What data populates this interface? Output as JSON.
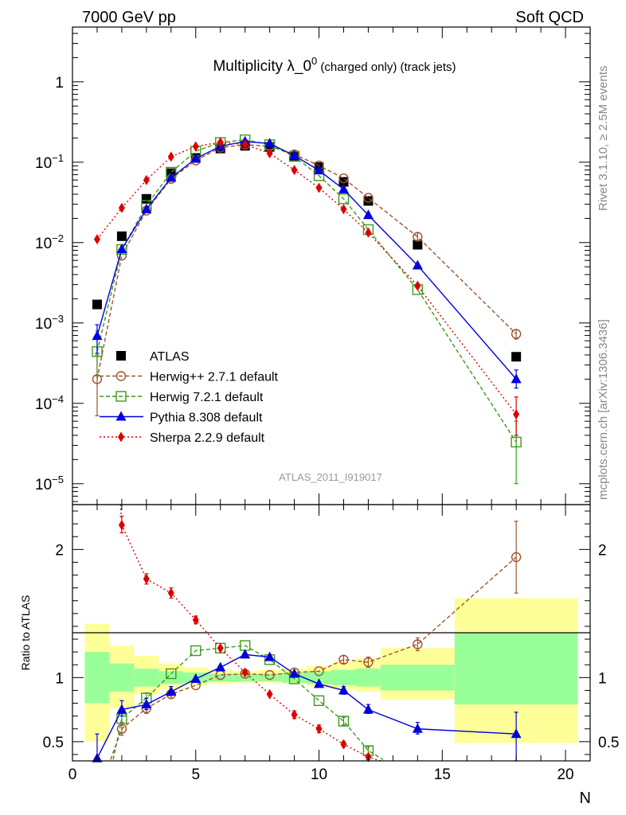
{
  "header": {
    "left": "7000 GeV pp",
    "right": "Soft QCD",
    "side_top": "Rivet 3.1.10, ≥ 2.5M events",
    "side_bottom": "mcplots.cern.ch [arXiv:1306.3436]",
    "watermark": "ATLAS_2011_I919017"
  },
  "colors": {
    "atlas": "#000000",
    "herwig_pp": "#a0522d",
    "herwig7": "#3a9a1a",
    "pythia": "#0000dd",
    "sherpa": "#dd0000",
    "band_green": "#99ff99",
    "band_yellow": "#ffff99"
  },
  "chart_data": [
    {
      "type": "scatter",
      "panel": "main",
      "title": "Multiplicity λ_0⁰ (charged only) (track jets)",
      "title_parts": {
        "main": "Multiplicity λ_0",
        "sup": "0",
        "rest": " (charged only) (track jets)"
      },
      "xlabel": "N",
      "ylabel": "",
      "xlim": [
        0,
        21
      ],
      "ylim": [
        5.5e-06,
        4.8
      ],
      "yscale": "log",
      "yticks": [
        {
          "v": 1e-05,
          "b": "10",
          "e": "−5"
        },
        {
          "v": 0.0001,
          "b": "10",
          "e": "−4"
        },
        {
          "v": 0.001,
          "b": "10",
          "e": "−3"
        },
        {
          "v": 0.01,
          "b": "10",
          "e": "−2"
        },
        {
          "v": 0.1,
          "b": "10",
          "e": "−1"
        },
        {
          "v": 1,
          "b": "1",
          "e": ""
        }
      ],
      "legend_position": "bottom-left",
      "series": [
        {
          "name": "ATLAS",
          "style": "data",
          "marker": "square",
          "x": [
            1,
            2,
            3,
            4,
            5,
            6,
            7,
            8,
            9,
            10,
            11,
            12,
            14,
            18
          ],
          "y": [
            0.0017,
            0.012,
            0.035,
            0.073,
            0.113,
            0.148,
            0.16,
            0.155,
            0.12,
            0.087,
            0.057,
            0.033,
            0.0094,
            0.00038
          ]
        },
        {
          "name": "Herwig++ 2.7.1 default",
          "style": "dashed",
          "marker": "circle-open",
          "x": [
            1,
            2,
            3,
            4,
            5,
            6,
            7,
            8,
            9,
            10,
            11,
            12,
            14,
            18
          ],
          "y": [
            0.0002,
            0.0069,
            0.025,
            0.062,
            0.105,
            0.152,
            0.165,
            0.158,
            0.125,
            0.091,
            0.063,
            0.036,
            0.0118,
            0.00073
          ],
          "err": [
            [
              7e-05,
              0.0004
            ],
            null,
            null,
            null,
            null,
            null,
            null,
            null,
            null,
            null,
            null,
            null,
            [
              0.0105,
              0.0132
            ],
            [
              0.00063,
              0.00083
            ]
          ]
        },
        {
          "name": "Herwig 7.2.1 default",
          "style": "dashed",
          "marker": "square-open",
          "x": [
            1,
            2,
            3,
            4,
            5,
            6,
            7,
            8,
            9,
            10,
            11,
            12,
            14,
            18
          ],
          "y": [
            0.00044,
            0.0082,
            0.029,
            0.075,
            0.137,
            0.176,
            0.19,
            0.165,
            0.118,
            0.068,
            0.035,
            0.0145,
            0.0026,
            3.3e-05
          ],
          "err": [
            [
              0.00022,
              0.0008
            ],
            null,
            null,
            null,
            null,
            null,
            null,
            null,
            null,
            null,
            null,
            null,
            null,
            [
              1e-05,
              6e-05
            ]
          ]
        },
        {
          "name": "Pythia 8.308 default",
          "style": "solid",
          "marker": "triangle",
          "x": [
            1,
            2,
            3,
            4,
            5,
            6,
            7,
            8,
            9,
            10,
            11,
            12,
            14,
            18
          ],
          "y": [
            0.00069,
            0.0083,
            0.026,
            0.064,
            0.111,
            0.158,
            0.181,
            0.171,
            0.121,
            0.079,
            0.046,
            0.022,
            0.0052,
            0.0002
          ],
          "err": [
            [
              0.00042,
              0.00095
            ],
            null,
            null,
            null,
            null,
            null,
            null,
            null,
            null,
            null,
            null,
            null,
            null,
            [
              0.000155,
              0.00026
            ]
          ]
        },
        {
          "name": "Sherpa 2.2.9 default",
          "style": "dotted",
          "marker": "diamond",
          "x": [
            1,
            2,
            3,
            4,
            5,
            6,
            7,
            8,
            9,
            10,
            11,
            12,
            14,
            18
          ],
          "y": [
            0.011,
            0.027,
            0.06,
            0.117,
            0.157,
            0.177,
            0.166,
            0.129,
            0.08,
            0.048,
            0.026,
            0.0133,
            0.0029,
            7.3e-05
          ],
          "err": [
            null,
            null,
            null,
            null,
            null,
            null,
            null,
            null,
            null,
            null,
            null,
            null,
            null,
            [
              4e-05,
              0.00012
            ]
          ]
        }
      ]
    },
    {
      "type": "scatter",
      "panel": "ratio",
      "title": "",
      "xlabel": "N",
      "ylabel": "Ratio to ATLAS",
      "xlim": [
        0,
        21
      ],
      "ylim": [
        0.35,
        2.35
      ],
      "yticks": [
        0.5,
        1,
        2
      ],
      "xticks": [
        0,
        5,
        10,
        15,
        20
      ],
      "bands": [
        {
          "x0": 0.5,
          "x1": 1.5,
          "inner": [
            0.8,
            1.2
          ],
          "outer": [
            0.5,
            1.42
          ]
        },
        {
          "x0": 1.5,
          "x1": 2.5,
          "inner": [
            0.89,
            1.11
          ],
          "outer": [
            0.76,
            1.25
          ]
        },
        {
          "x0": 2.5,
          "x1": 3.5,
          "inner": [
            0.93,
            1.07
          ],
          "outer": [
            0.87,
            1.17
          ]
        },
        {
          "x0": 3.5,
          "x1": 4.5,
          "inner": [
            0.95,
            1.05
          ],
          "outer": [
            0.91,
            1.11
          ]
        },
        {
          "x0": 4.5,
          "x1": 5.5,
          "inner": [
            0.96,
            1.04
          ],
          "outer": [
            0.94,
            1.08
          ]
        },
        {
          "x0": 5.5,
          "x1": 6.5,
          "inner": [
            0.97,
            1.03
          ],
          "outer": [
            0.95,
            1.06
          ]
        },
        {
          "x0": 6.5,
          "x1": 7.5,
          "inner": [
            0.97,
            1.03
          ],
          "outer": [
            0.96,
            1.05
          ]
        },
        {
          "x0": 7.5,
          "x1": 8.5,
          "inner": [
            0.97,
            1.03
          ],
          "outer": [
            0.96,
            1.06
          ]
        },
        {
          "x0": 8.5,
          "x1": 9.5,
          "inner": [
            0.96,
            1.04
          ],
          "outer": [
            0.95,
            1.07
          ]
        },
        {
          "x0": 9.5,
          "x1": 10.5,
          "inner": [
            0.95,
            1.05
          ],
          "outer": [
            0.93,
            1.09
          ]
        },
        {
          "x0": 10.5,
          "x1": 11.5,
          "inner": [
            0.94,
            1.06
          ],
          "outer": [
            0.91,
            1.12
          ]
        },
        {
          "x0": 11.5,
          "x1": 12.5,
          "inner": [
            0.93,
            1.07
          ],
          "outer": [
            0.89,
            1.15
          ]
        },
        {
          "x0": 12.5,
          "x1": 15.5,
          "inner": [
            0.9,
            1.1
          ],
          "outer": [
            0.83,
            1.23
          ]
        },
        {
          "x0": 15.5,
          "x1": 20.5,
          "inner": [
            0.79,
            1.35
          ],
          "outer": [
            0.49,
            1.62
          ]
        }
      ],
      "series": [
        {
          "name": "Herwig++ 2.7.1 default",
          "style": "dashed",
          "marker": "circle-open",
          "x": [
            2,
            3,
            4,
            5,
            6,
            7,
            8,
            9,
            10,
            11,
            12,
            14,
            18
          ],
          "y": [
            0.6,
            0.76,
            0.87,
            0.94,
            1.02,
            1.03,
            1.02,
            1.04,
            1.05,
            1.14,
            1.12,
            1.26,
            1.94
          ],
          "err": [
            [
              0.55,
              0.65
            ],
            [
              0.72,
              0.8
            ],
            [
              0.84,
              0.9
            ],
            null,
            null,
            null,
            null,
            null,
            null,
            [
              1.11,
              1.17
            ],
            [
              1.08,
              1.16
            ],
            [
              1.21,
              1.31
            ],
            [
              1.66,
              2.22
            ]
          ],
          "line_from": [
            1.55,
            0.36
          ]
        },
        {
          "name": "Herwig 7.2.1 default",
          "style": "dashed",
          "marker": "square-open",
          "x": [
            2,
            3,
            4,
            5,
            6,
            7,
            8,
            9,
            10,
            11,
            12
          ],
          "y": [
            0.68,
            0.84,
            1.03,
            1.21,
            1.23,
            1.25,
            1.14,
            0.99,
            0.82,
            0.66,
            0.43
          ],
          "err": [
            [
              0.63,
              0.73
            ],
            [
              0.8,
              0.88
            ],
            null,
            null,
            null,
            null,
            null,
            null,
            null,
            [
              0.63,
              0.69
            ],
            [
              0.4,
              0.46
            ]
          ],
          "line_from": [
            1.65,
            0.36
          ],
          "line_to": [
            12.6,
            0.36
          ]
        },
        {
          "name": "Pythia 8.308 default",
          "style": "solid",
          "marker": "triangle",
          "x": [
            1,
            2,
            3,
            4,
            5,
            6,
            7,
            8,
            9,
            10,
            11,
            12,
            14,
            18
          ],
          "y": [
            0.37,
            0.75,
            0.79,
            0.89,
            0.99,
            1.08,
            1.18,
            1.16,
            1.03,
            0.95,
            0.9,
            0.75,
            0.6,
            0.56
          ],
          "err": [
            [
              0.35,
              0.56
            ],
            [
              0.7,
              0.82
            ],
            [
              0.75,
              0.84
            ],
            [
              0.86,
              0.93
            ],
            null,
            null,
            null,
            null,
            null,
            null,
            [
              0.87,
              0.93
            ],
            [
              0.72,
              0.79
            ],
            [
              0.56,
              0.65
            ],
            [
              0.35,
              0.73
            ]
          ]
        },
        {
          "name": "Sherpa 2.2.9 default",
          "style": "dotted",
          "marker": "diamond",
          "x": [
            2,
            3,
            4,
            5,
            6,
            7,
            8,
            9,
            10,
            11,
            12
          ],
          "y": [
            2.19,
            1.77,
            1.66,
            1.45,
            1.23,
            1.04,
            0.87,
            0.71,
            0.6,
            0.48,
            0.38
          ],
          "err": [
            [
              2.13,
              2.26
            ],
            [
              1.73,
              1.81
            ],
            [
              1.62,
              1.7
            ],
            [
              1.42,
              1.48
            ],
            null,
            null,
            null,
            [
              0.68,
              0.74
            ],
            [
              0.57,
              0.63
            ],
            [
              0.46,
              0.5
            ],
            [
              0.36,
              0.4
            ]
          ],
          "line_from": [
            1.95,
            2.35
          ],
          "line_to": [
            12.5,
            0.35
          ]
        }
      ]
    }
  ]
}
